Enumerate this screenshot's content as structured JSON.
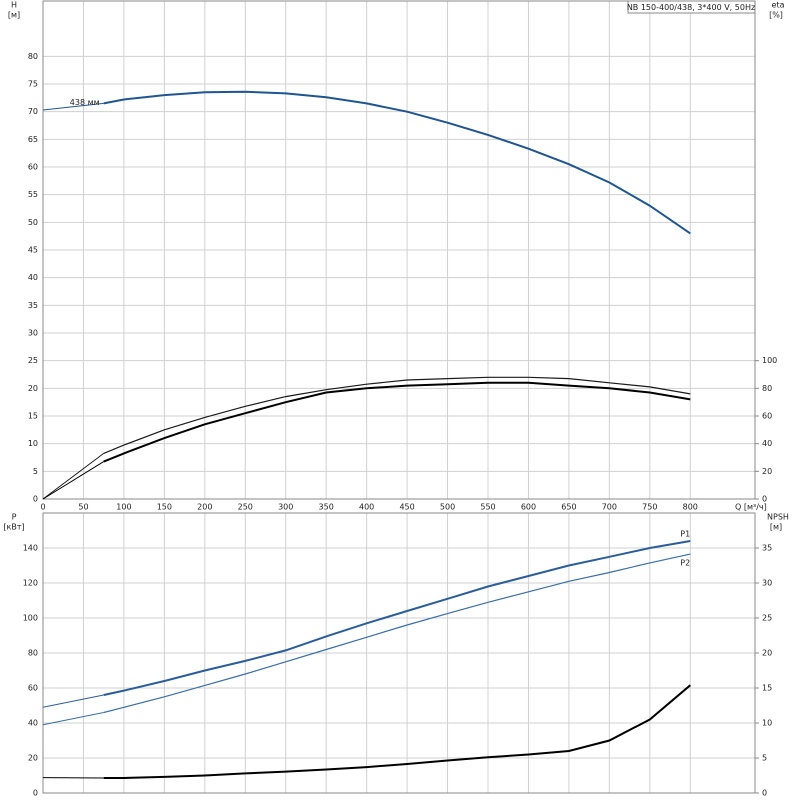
{
  "chart_data": [
    {
      "type": "line",
      "title": "NB 150-400/438, 3*400 V, 50Hz",
      "y_label": "H",
      "y_unit": "[м]",
      "y2_label": "eta",
      "y2_unit": "[%]",
      "x_label": "Q [м³/ч]",
      "x": [
        0,
        75,
        100,
        150,
        200,
        250,
        300,
        350,
        400,
        450,
        500,
        550,
        600,
        650,
        700,
        750,
        800
      ],
      "xlim": [
        0,
        880
      ],
      "xticks": [
        0,
        50,
        100,
        150,
        200,
        250,
        300,
        350,
        400,
        450,
        500,
        550,
        600,
        650,
        700,
        750,
        800
      ],
      "ylim": [
        0,
        90
      ],
      "yticks": [
        0,
        5,
        10,
        15,
        20,
        25,
        30,
        35,
        40,
        45,
        50,
        55,
        60,
        65,
        70,
        75,
        80
      ],
      "y2lim": [
        0,
        360
      ],
      "y2ticks": [
        0,
        20,
        40,
        60,
        80,
        100
      ],
      "grid": true,
      "x_tick_labels": true,
      "series": [
        {
          "name": "438 мм",
          "color": "#1f5591",
          "line_width": 2,
          "axis": "y",
          "values": [
            70.3,
            71.5,
            72.2,
            73.0,
            73.5,
            73.6,
            73.3,
            72.6,
            71.5,
            70.0,
            68.0,
            65.8,
            63.3,
            60.5,
            57.2,
            53.0,
            48.0
          ]
        },
        {
          "color": "#1a1a1a",
          "line_width": 1.2,
          "axis": "y2",
          "values": [
            0,
            33,
            39,
            50,
            59,
            67,
            74,
            79,
            83,
            86,
            87,
            88,
            88,
            87,
            84,
            81,
            76
          ]
        },
        {
          "color": "#000000",
          "line_width": 2,
          "axis": "y2",
          "values": [
            0,
            27,
            33,
            44,
            54,
            62,
            70,
            77,
            80,
            82,
            83,
            84,
            84,
            82,
            80,
            77,
            72
          ]
        }
      ]
    },
    {
      "type": "line",
      "y_label": "P",
      "y_unit": "[кВт]",
      "y2_label": "NPSH",
      "y2_unit": "[м]",
      "x": [
        0,
        75,
        100,
        150,
        200,
        250,
        300,
        350,
        400,
        450,
        500,
        550,
        600,
        650,
        700,
        750,
        800
      ],
      "xlim": [
        0,
        880
      ],
      "xticks": [
        0,
        50,
        100,
        150,
        200,
        250,
        300,
        350,
        400,
        450,
        500,
        550,
        600,
        650,
        700,
        750,
        800
      ],
      "ylim": [
        0,
        160
      ],
      "yticks": [
        0,
        20,
        40,
        60,
        80,
        100,
        120,
        140
      ],
      "y2lim": [
        0,
        40
      ],
      "y2ticks": [
        0,
        5,
        10,
        15,
        20,
        25,
        30,
        35
      ],
      "grid": true,
      "x_tick_labels": false,
      "series": [
        {
          "name": "P1",
          "color": "#2a5d9a",
          "line_width": 2,
          "axis": "y",
          "values": [
            49,
            56,
            58.5,
            64,
            70,
            75.5,
            81.5,
            89.5,
            97,
            104,
            111,
            118,
            124,
            130,
            135,
            140,
            144
          ]
        },
        {
          "name": "P2",
          "color": "#3a6ea5",
          "line_width": 1.2,
          "axis": "y",
          "values": [
            39,
            46,
            49,
            55,
            61.5,
            68,
            75,
            82,
            89,
            96,
            102.5,
            109,
            115,
            121,
            126,
            131.5,
            136.5
          ]
        },
        {
          "color": "#000000",
          "line_width": 2,
          "axis": "y2",
          "values": [
            2.2,
            2.15,
            2.15,
            2.3,
            2.5,
            2.8,
            3.05,
            3.35,
            3.7,
            4.15,
            4.65,
            5.1,
            5.5,
            6.0,
            7.5,
            10.5,
            15.4
          ]
        }
      ]
    }
  ]
}
